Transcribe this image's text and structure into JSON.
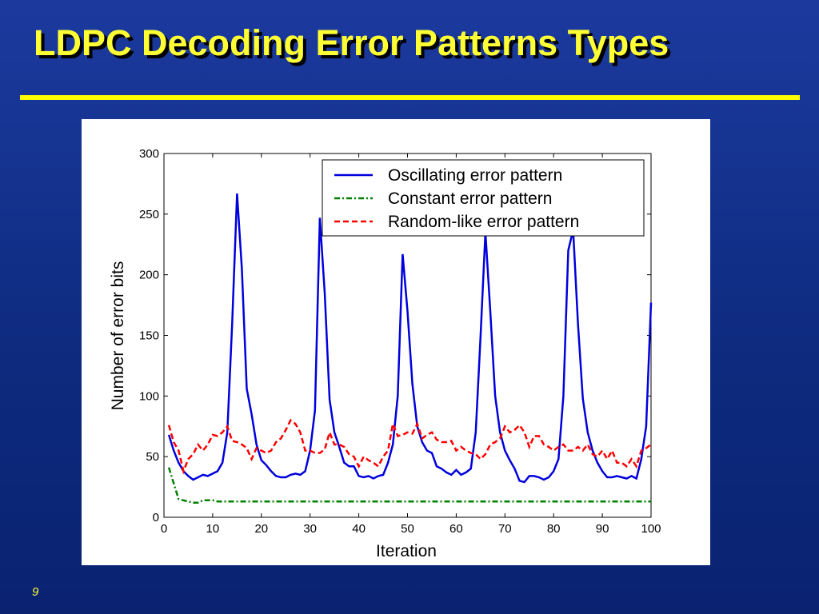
{
  "title": "LDPC Decoding Error Patterns Types",
  "page_number": "9",
  "chart_data": {
    "type": "line",
    "xlabel": "Iteration",
    "ylabel": "Number of error bits",
    "xlim": [
      0,
      100
    ],
    "xticks": [
      0,
      10,
      20,
      30,
      40,
      50,
      60,
      70,
      80,
      90,
      100
    ],
    "ylim": [
      0,
      300
    ],
    "yticks": [
      0,
      50,
      100,
      150,
      200,
      250,
      300
    ],
    "legend": "upper right",
    "x": [
      1,
      2,
      3,
      4,
      5,
      6,
      7,
      8,
      9,
      10,
      11,
      12,
      13,
      14,
      15,
      16,
      17,
      18,
      19,
      20,
      21,
      22,
      23,
      24,
      25,
      26,
      27,
      28,
      29,
      30,
      31,
      32,
      33,
      34,
      35,
      36,
      37,
      38,
      39,
      40,
      41,
      42,
      43,
      44,
      45,
      46,
      47,
      48,
      49,
      50,
      51,
      52,
      53,
      54,
      55,
      56,
      57,
      58,
      59,
      60,
      61,
      62,
      63,
      64,
      65,
      66,
      67,
      68,
      69,
      70,
      71,
      72,
      73,
      74,
      75,
      76,
      77,
      78,
      79,
      80,
      81,
      82,
      83,
      84,
      85,
      86,
      87,
      88,
      89,
      90,
      91,
      92,
      93,
      94,
      95,
      96,
      97,
      98,
      99,
      100
    ],
    "series": [
      {
        "name": "Oscillating error pattern",
        "color": "#0000dd",
        "dash": "solid",
        "values": [
          68,
          55,
          45,
          38,
          34,
          31,
          33,
          35,
          34,
          36,
          38,
          45,
          70,
          160,
          267,
          205,
          106,
          85,
          60,
          47,
          43,
          38,
          34,
          33,
          33,
          35,
          36,
          35,
          38,
          55,
          88,
          247,
          185,
          97,
          70,
          58,
          45,
          42,
          42,
          34,
          33,
          34,
          32,
          34,
          35,
          45,
          60,
          100,
          217,
          170,
          110,
          75,
          62,
          55,
          53,
          42,
          40,
          37,
          35,
          39,
          35,
          37,
          40,
          70,
          150,
          235,
          170,
          100,
          70,
          55,
          47,
          40,
          30,
          29,
          34,
          34,
          33,
          31,
          33,
          38,
          48,
          100,
          220,
          237,
          160,
          98,
          70,
          55,
          45,
          38,
          33,
          33,
          34,
          33,
          32,
          34,
          32,
          48,
          75,
          177
        ]
      },
      {
        "name": "Constant error pattern",
        "color": "#008000",
        "dash": "dashdot",
        "values": [
          41,
          28,
          15,
          14,
          13,
          12,
          12,
          14,
          14,
          14,
          13,
          13,
          13,
          13,
          13,
          13,
          13,
          13,
          13,
          13,
          13,
          13,
          13,
          13,
          13,
          13,
          13,
          13,
          13,
          13,
          13,
          13,
          13,
          13,
          13,
          13,
          13,
          13,
          13,
          13,
          13,
          13,
          13,
          13,
          13,
          13,
          13,
          13,
          13,
          13,
          13,
          13,
          13,
          13,
          13,
          13,
          13,
          13,
          13,
          13,
          13,
          13,
          13,
          13,
          13,
          13,
          13,
          13,
          13,
          13,
          13,
          13,
          13,
          13,
          13,
          13,
          13,
          13,
          13,
          13,
          13,
          13,
          13,
          13,
          13,
          13,
          13,
          13,
          13,
          13,
          13,
          13,
          13,
          13,
          13,
          13,
          13,
          13,
          13,
          13
        ]
      },
      {
        "name": "Random-like error pattern",
        "color": "#ff0000",
        "dash": "dashed",
        "values": [
          76,
          62,
          55,
          38,
          48,
          52,
          60,
          55,
          60,
          68,
          67,
          70,
          75,
          63,
          62,
          60,
          57,
          48,
          57,
          55,
          53,
          55,
          62,
          65,
          72,
          80,
          77,
          70,
          55,
          55,
          53,
          53,
          56,
          70,
          60,
          60,
          58,
          52,
          50,
          42,
          50,
          47,
          45,
          42,
          50,
          55,
          77,
          67,
          68,
          70,
          69,
          77,
          65,
          68,
          70,
          64,
          62,
          62,
          63,
          55,
          58,
          55,
          53,
          52,
          48,
          52,
          60,
          62,
          65,
          75,
          70,
          72,
          76,
          70,
          58,
          67,
          67,
          60,
          58,
          55,
          58,
          60,
          55,
          55,
          58,
          55,
          60,
          52,
          50,
          55,
          48,
          55,
          45,
          45,
          42,
          48,
          42,
          55,
          57,
          60
        ]
      }
    ]
  }
}
